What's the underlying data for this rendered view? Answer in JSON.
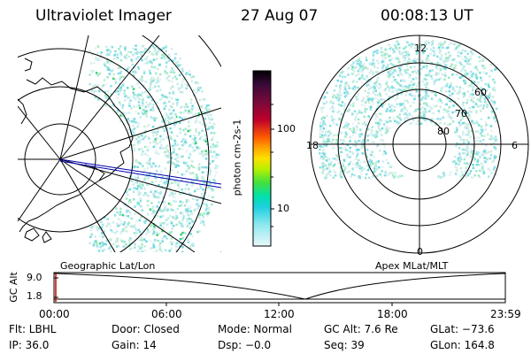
{
  "header": {
    "instrument": "Ultraviolet Imager",
    "date": "27 Aug 07",
    "time": "00:08:13 UT"
  },
  "left_panel": {
    "caption": "Geographic Lat/Lon"
  },
  "right_panel": {
    "caption": "Apex MLat/MLT",
    "ring_labels": [
      "60",
      "70",
      "80"
    ],
    "mlt_labels": {
      "top": "12",
      "bottom": "0",
      "left": "18",
      "right": "6"
    }
  },
  "colorbar": {
    "unit_label": "photon cm-2s-1",
    "ticks": [
      "100",
      "10"
    ],
    "colors": [
      "#000000",
      "#3a0a3a",
      "#7a0a3a",
      "#b0003a",
      "#e0002a",
      "#ff5a00",
      "#ffa500",
      "#ffe000",
      "#b8f000",
      "#40e040",
      "#00e0b0",
      "#20d0e0",
      "#90e8f0",
      "#d8f4f8"
    ]
  },
  "timeline": {
    "axis_label": "GC Alt",
    "y_ticks": [
      "9.0",
      "1.8"
    ],
    "x_ticks": [
      "00:00",
      "06:00",
      "12:00",
      "18:00",
      "23:59"
    ]
  },
  "info": {
    "row1": [
      "Flt: LBHL",
      "Door: Closed",
      "Mode: Normal",
      "GC Alt: 7.6 Re",
      "GLat: −73.6"
    ],
    "row2": [
      "IP: 36.0",
      "Gain: 14",
      "Dsp:  −0.0",
      "Seq: 39",
      "GLon: 164.8"
    ]
  },
  "accent_colors": {
    "auroral_dots": "#7fe0e8",
    "track": "#0000aa",
    "marker": "#cc0000"
  }
}
